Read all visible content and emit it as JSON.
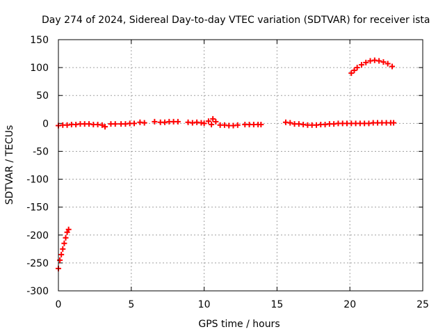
{
  "chart_data": {
    "type": "scatter",
    "title": "Day 274 of 2024, Sidereal Day-to-day VTEC variation (SDTVAR) for receiver ista",
    "xlabel": "GPS time / hours",
    "ylabel": "SDTVAR / TECUs",
    "xlim": [
      0,
      25
    ],
    "ylim": [
      -300,
      150
    ],
    "xticks": [
      0,
      5,
      10,
      15,
      20,
      25
    ],
    "yticks": [
      -300,
      -250,
      -200,
      -150,
      -100,
      -50,
      0,
      50,
      100,
      150
    ],
    "grid": true,
    "marker": "plus",
    "color": "#ff0000",
    "series": [
      {
        "values": [
          [
            0.0,
            -260
          ],
          [
            0.1,
            -245
          ],
          [
            0.2,
            -235
          ],
          [
            0.3,
            -225
          ],
          [
            0.4,
            -215
          ],
          [
            0.5,
            -205
          ],
          [
            0.6,
            -195
          ],
          [
            0.7,
            -190
          ],
          [
            0.0,
            -4
          ],
          [
            0.3,
            -3
          ],
          [
            0.6,
            -3
          ],
          [
            0.9,
            -2
          ],
          [
            1.2,
            -2
          ],
          [
            1.5,
            -1
          ],
          [
            1.8,
            -1
          ],
          [
            2.1,
            -1
          ],
          [
            2.4,
            -2
          ],
          [
            2.7,
            -2
          ],
          [
            3.0,
            -3
          ],
          [
            3.2,
            -6
          ],
          [
            3.6,
            -1
          ],
          [
            3.9,
            -1
          ],
          [
            4.3,
            -1
          ],
          [
            4.6,
            -1
          ],
          [
            4.9,
            0
          ],
          [
            5.2,
            0
          ],
          [
            5.6,
            2
          ],
          [
            5.9,
            1
          ],
          [
            6.6,
            3
          ],
          [
            7.0,
            2
          ],
          [
            7.3,
            2
          ],
          [
            7.6,
            3
          ],
          [
            7.9,
            3
          ],
          [
            8.2,
            3
          ],
          [
            8.9,
            2
          ],
          [
            9.2,
            1
          ],
          [
            9.5,
            2
          ],
          [
            9.8,
            1
          ],
          [
            10.0,
            0
          ],
          [
            10.3,
            4
          ],
          [
            10.5,
            -2
          ],
          [
            10.6,
            8
          ],
          [
            10.8,
            3
          ],
          [
            11.1,
            -3
          ],
          [
            11.4,
            -3
          ],
          [
            11.7,
            -4
          ],
          [
            12.0,
            -4
          ],
          [
            12.3,
            -3
          ],
          [
            12.8,
            -2
          ],
          [
            13.1,
            -2
          ],
          [
            13.4,
            -2
          ],
          [
            13.7,
            -2
          ],
          [
            13.9,
            -2
          ],
          [
            15.6,
            2
          ],
          [
            15.9,
            1
          ],
          [
            16.2,
            -1
          ],
          [
            16.5,
            -1
          ],
          [
            16.8,
            -2
          ],
          [
            17.1,
            -3
          ],
          [
            17.4,
            -3
          ],
          [
            17.7,
            -3
          ],
          [
            18.0,
            -2
          ],
          [
            18.3,
            -2
          ],
          [
            18.6,
            -1
          ],
          [
            18.9,
            -1
          ],
          [
            19.2,
            0
          ],
          [
            19.5,
            0
          ],
          [
            19.8,
            0
          ],
          [
            20.1,
            0
          ],
          [
            20.4,
            0
          ],
          [
            20.7,
            0
          ],
          [
            21.0,
            0
          ],
          [
            21.3,
            0
          ],
          [
            21.6,
            1
          ],
          [
            21.9,
            1
          ],
          [
            22.2,
            1
          ],
          [
            22.5,
            1
          ],
          [
            22.8,
            1
          ],
          [
            23.0,
            1
          ],
          [
            20.1,
            90
          ],
          [
            20.3,
            95
          ],
          [
            20.5,
            100
          ],
          [
            20.8,
            105
          ],
          [
            21.1,
            109
          ],
          [
            21.4,
            112
          ],
          [
            21.7,
            113
          ],
          [
            22.0,
            112
          ],
          [
            22.3,
            110
          ],
          [
            22.6,
            107
          ],
          [
            22.9,
            102
          ]
        ]
      }
    ]
  }
}
